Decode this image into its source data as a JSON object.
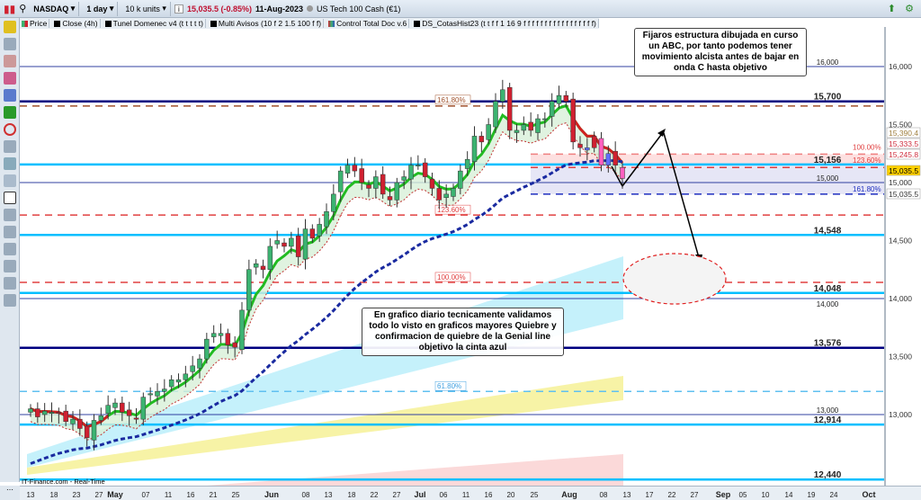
{
  "toolbar": {
    "symbol": "NASDAQ",
    "interval": "1 day",
    "units": "10 k units",
    "price": "15,035.5 (-0.85%)",
    "date": "11-Aug-2023",
    "instrument": "US Tech 100 Cash (€1)"
  },
  "legend": [
    "Price",
    "Close (4h)",
    "Tunel Domenec v4 (t t t t t)",
    "Multi Avisos (10 f 2 1.5 100 f f)",
    "Control Total Doc v.6",
    "DS_CotasHist23 (t t f f 1 16 9 f f f f f f f f f f f f f f f f f)"
  ],
  "notes": {
    "top": "Fijaros estructura dibujada en curso un ABC, por tanto podemos tener movimiento alcista antes de bajar en onda C hasta objetivo",
    "middle": "En grafico diario tecnicamente validamos todo lo visto en graficos mayores Quiebre y confirmacion de quiebre de la Genial line objetivo la cinta azul"
  },
  "source": "IT-Finance.com - Real-Time",
  "colors": {
    "up": "#3cb371",
    "down": "#d02030",
    "ema_fast": "#22bb22",
    "ema_slow": "#1a2aa0",
    "cyan": "#00bfff",
    "navy": "#000080"
  },
  "chart_data": {
    "type": "candlestick",
    "ylim": [
      12350,
      16450
    ],
    "y_ticks": [
      "16,000",
      "15,500",
      "15,000",
      "14,500",
      "14,000",
      "13,500",
      "13,000"
    ],
    "y_tick_values": [
      16000,
      15500,
      15000,
      14500,
      14000,
      13500,
      13000
    ],
    "x_labels": [
      "13",
      "18",
      "23",
      "27",
      "May",
      "07",
      "11",
      "16",
      "21",
      "25",
      "Jun",
      "08",
      "13",
      "18",
      "22",
      "27",
      "Jul",
      "06",
      "11",
      "16",
      "20",
      "25",
      "Aug",
      "08",
      "13",
      "17",
      "22",
      "27",
      "Sep",
      "05",
      "10",
      "14",
      "19",
      "24",
      "Oct"
    ],
    "start": "13-Apr-2023",
    "end": "11-Aug-2023",
    "close": [
      13050,
      12980,
      13030,
      13020,
      13010,
      12940,
      12960,
      12880,
      12800,
      12950,
      12990,
      13080,
      13100,
      13020,
      12990,
      12960,
      13150,
      13180,
      13200,
      13220,
      13300,
      13300,
      13350,
      13420,
      13480,
      13650,
      13700,
      13700,
      13600,
      13580,
      13900,
      14250,
      14300,
      14250,
      14450,
      14500,
      14450,
      14520,
      14360,
      14600,
      14520,
      14640,
      14750,
      14900,
      15100,
      15150,
      15100,
      15000,
      14950,
      15050,
      14900,
      14850,
      15000,
      15050,
      15150,
      15150,
      15050,
      14950,
      14850,
      14900,
      14950,
      15100,
      15200,
      15400,
      15350,
      15500,
      15700,
      15800,
      15450,
      15450,
      15500,
      15450,
      15550,
      15550,
      15700,
      15750,
      15700,
      15350,
      15300,
      15280,
      15400,
      15150,
      15250,
      15150,
      15035
    ],
    "levels": [
      {
        "value": 16000,
        "label": "16,000"
      },
      {
        "value": 15700,
        "label": "15,700"
      },
      {
        "value": 15156,
        "label": "15,156"
      },
      {
        "value": 15000,
        "label": "15,000"
      },
      {
        "value": 14548,
        "label": "14,548"
      },
      {
        "value": 14048,
        "label": "14,048"
      },
      {
        "value": 14000,
        "label": "14,000"
      },
      {
        "value": 13576,
        "label": "13,576"
      },
      {
        "value": 13000,
        "label": "13,000"
      },
      {
        "value": 12914,
        "label": "12,914"
      },
      {
        "value": 12440,
        "label": "12,440"
      }
    ],
    "fib_labels": {
      "f1618_top": "161.80%",
      "f1236": "123.60%",
      "f100": "100.00%",
      "f618": "61.80%",
      "r100": "100.00%",
      "r1236": "123.60%",
      "r1618": "161.80%"
    },
    "axis_tags": [
      {
        "label": "15,390.4",
        "value": 15390.4,
        "color": "#a08040"
      },
      {
        "label": "15,333.5",
        "value": 15333.5,
        "color": "#d03040"
      },
      {
        "label": "15,245.8",
        "value": 15245.8,
        "color": "#d03040"
      },
      {
        "label": "15,035.5",
        "value": 15035.5,
        "color": "#000",
        "bg": "#ffd000"
      },
      {
        "label": "15,035.5",
        "value": 15035.5,
        "color": "#333"
      }
    ]
  }
}
